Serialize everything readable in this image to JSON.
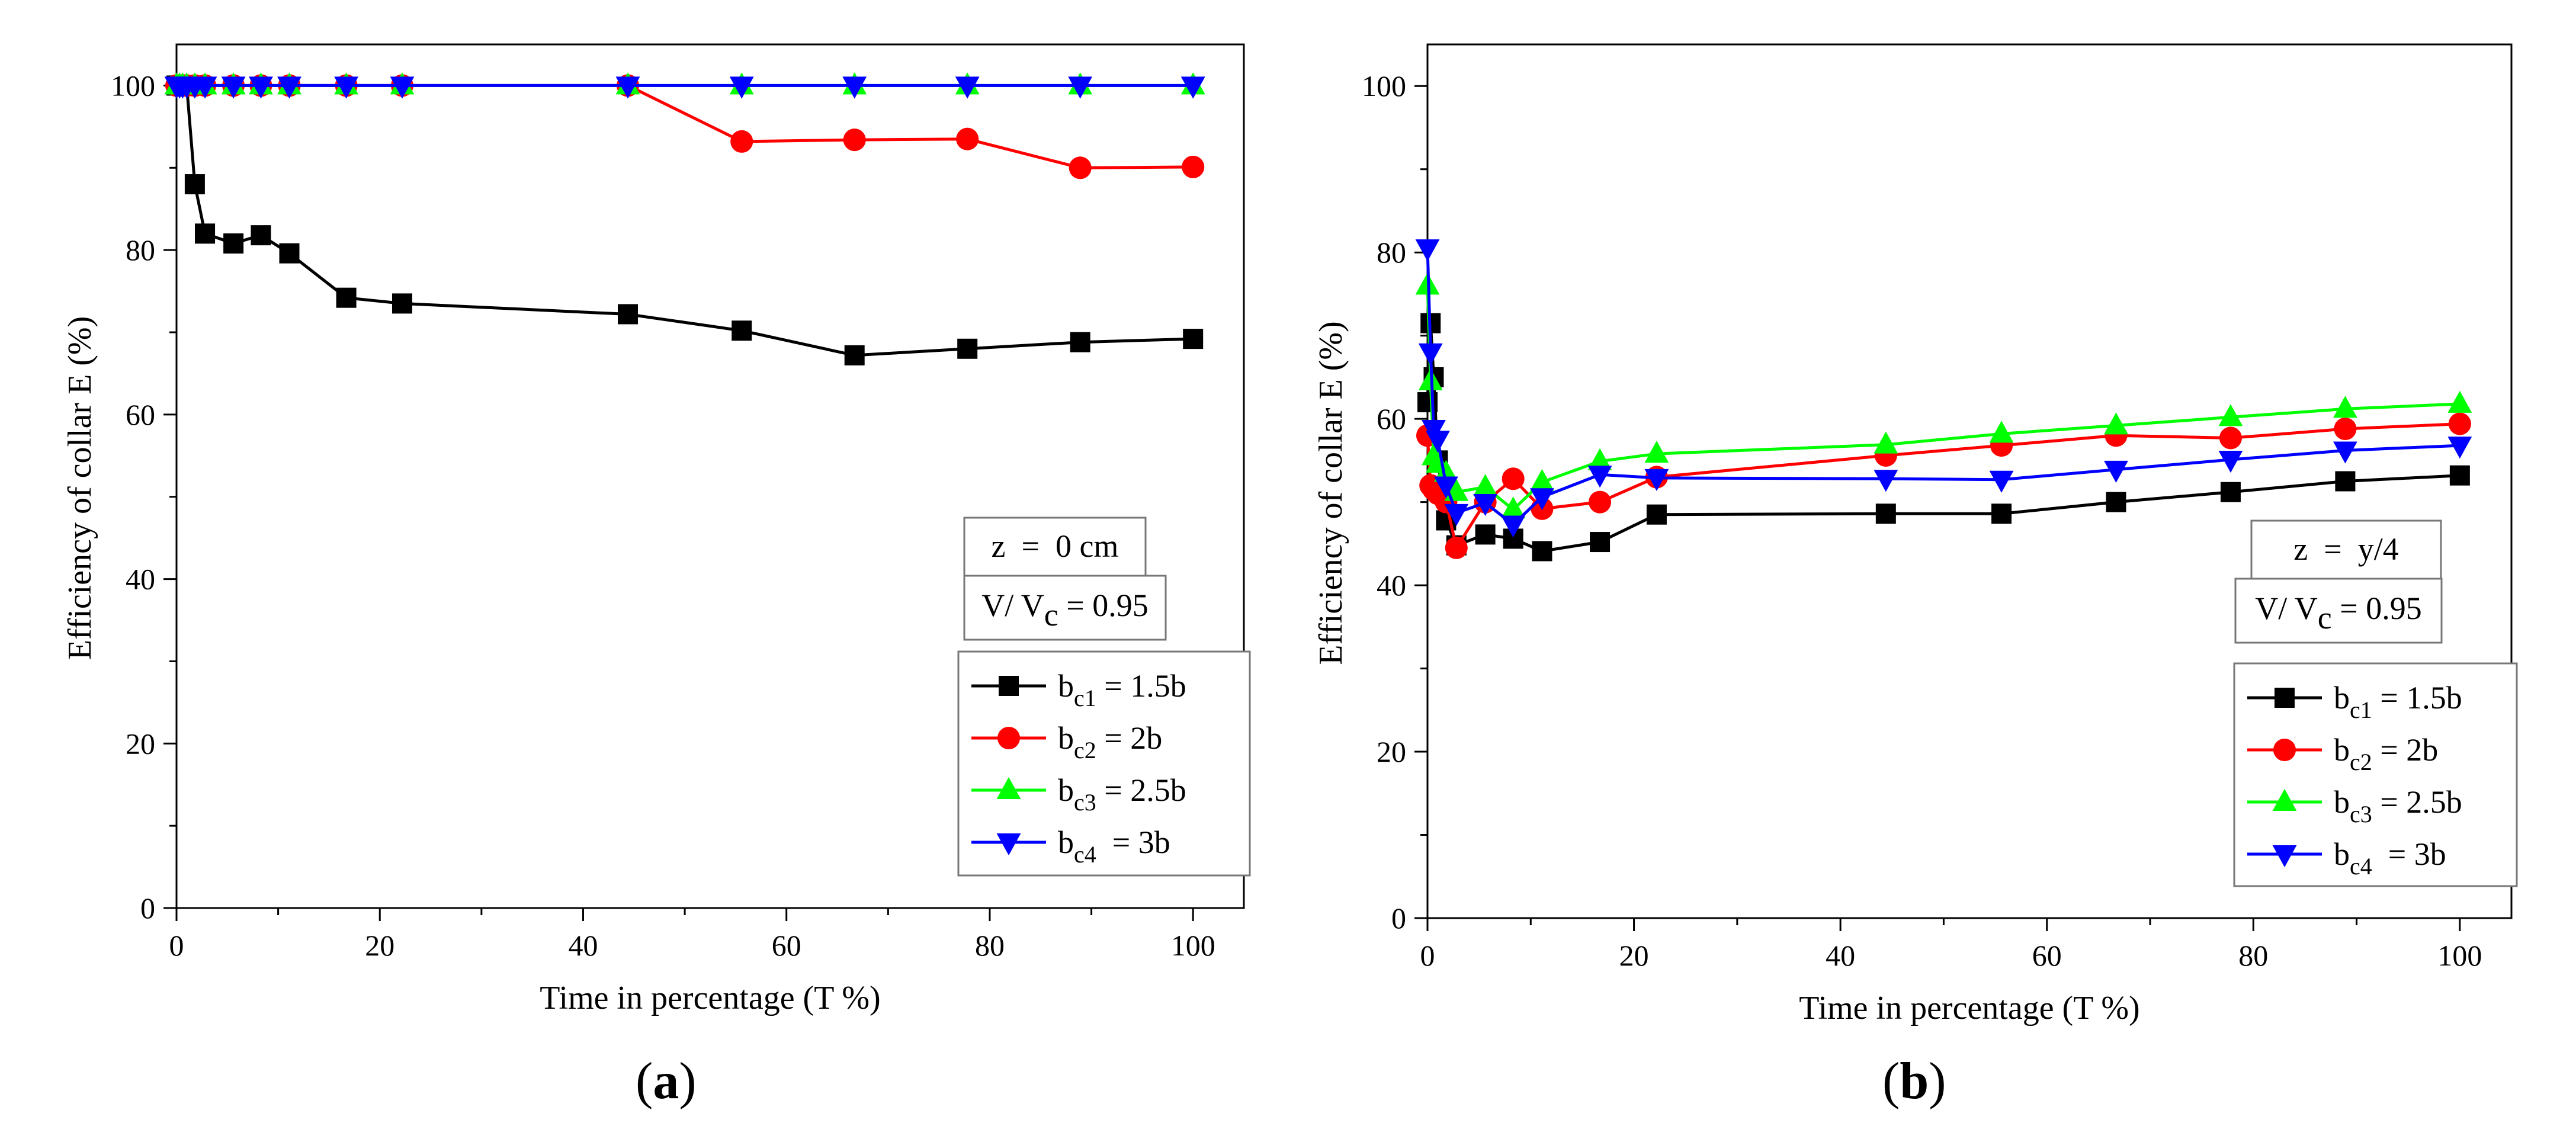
{
  "chart_data": [
    {
      "type": "line",
      "panel_label": "a",
      "xlabel": "Time in percentage (T %)",
      "ylabel": "Efficiency of collar E (%)",
      "xlim": [
        0,
        105
      ],
      "ylim": [
        0,
        105
      ],
      "xticks": [
        0,
        20,
        40,
        60,
        80,
        100
      ],
      "yticks": [
        0,
        20,
        40,
        60,
        80,
        100
      ],
      "annotation_z": "z  =  0 cm",
      "annotation_v": "V/ V",
      "annotation_v_sub": "c",
      "annotation_v_value": " = 0.95",
      "legend_placement": "bottom-right",
      "series": [
        {
          "name": "b",
          "sub": "c1",
          "suffix": " = 1.5b",
          "color": "#000000",
          "marker": "square",
          "x": [
            0,
            0.3,
            0.6,
            1,
            1.8,
            2.8,
            5.6,
            8.3,
            11.1,
            16.7,
            22.2,
            44.4,
            55.6,
            66.7,
            77.8,
            88.9,
            100
          ],
          "y": [
            100,
            100,
            100,
            100,
            88,
            82,
            80.8,
            81.8,
            79.6,
            74.2,
            73.5,
            72.2,
            70.2,
            67.2,
            68,
            68.8,
            69.2
          ]
        },
        {
          "name": "b",
          "sub": "c2",
          "suffix": " = 2b",
          "color": "#ff0000",
          "marker": "circle",
          "x": [
            0,
            0.3,
            0.6,
            1,
            1.8,
            2.8,
            5.6,
            8.3,
            11.1,
            16.7,
            22.2,
            44.4,
            55.6,
            66.7,
            77.8,
            88.9,
            100
          ],
          "y": [
            100,
            100,
            100,
            100,
            100,
            100,
            100,
            100,
            100,
            100,
            100,
            100,
            93.2,
            93.4,
            93.5,
            90,
            90.1
          ]
        },
        {
          "name": "b",
          "sub": "c3",
          "suffix": " = 2.5b",
          "color": "#00ff00",
          "marker": "triangle-up",
          "x": [
            0,
            0.3,
            0.6,
            1,
            1.8,
            2.8,
            5.6,
            8.3,
            11.1,
            16.7,
            22.2,
            44.4,
            55.6,
            66.7,
            77.8,
            88.9,
            100
          ],
          "y": [
            100,
            100,
            100,
            100,
            100,
            100,
            100,
            100,
            100,
            100,
            100,
            100,
            100,
            100,
            100,
            100,
            100
          ]
        },
        {
          "name": "b",
          "sub": "c4",
          "suffix": "  = 3b",
          "color": "#0000ff",
          "marker": "triangle-down",
          "x": [
            0,
            0.3,
            0.6,
            1,
            1.8,
            2.8,
            5.6,
            8.3,
            11.1,
            16.7,
            22.2,
            44.4,
            55.6,
            66.7,
            77.8,
            88.9,
            100
          ],
          "y": [
            100,
            100,
            100,
            100,
            100,
            100,
            100,
            100,
            100,
            100,
            100,
            100,
            100,
            100,
            100,
            100,
            100
          ]
        }
      ]
    },
    {
      "type": "line",
      "panel_label": "b",
      "xlabel": "Time in percentage (T %)",
      "ylabel": "Efficiency of collar E (%)",
      "xlim": [
        0,
        105
      ],
      "ylim": [
        0,
        105
      ],
      "xticks": [
        0,
        20,
        40,
        60,
        80,
        100
      ],
      "yticks": [
        0,
        20,
        40,
        60,
        80,
        100
      ],
      "annotation_z": "z  =  y/4",
      "annotation_v": "V/ V",
      "annotation_v_sub": "c",
      "annotation_v_value": " = 0.95",
      "legend_placement": "bottom-right",
      "series": [
        {
          "name": "b",
          "sub": "c1",
          "suffix": " = 1.5b",
          "color": "#000000",
          "marker": "square",
          "x": [
            0,
            0.3,
            0.6,
            1,
            1.8,
            2.8,
            5.6,
            8.3,
            11.1,
            16.7,
            22.2,
            44.4,
            55.6,
            66.7,
            77.8,
            88.9,
            100
          ],
          "y": [
            62,
            71.5,
            65,
            55,
            47.8,
            44.8,
            46.1,
            45.6,
            44.1,
            45.2,
            48.5,
            48.6,
            48.6,
            50,
            51.2,
            52.5,
            53.2
          ]
        },
        {
          "name": "b",
          "sub": "c2",
          "suffix": " = 2b",
          "color": "#ff0000",
          "marker": "circle",
          "x": [
            0,
            0.3,
            0.6,
            1,
            1.8,
            2.8,
            5.6,
            8.3,
            11.1,
            16.7,
            22.2,
            44.4,
            55.6,
            66.7,
            77.8,
            88.9,
            100
          ],
          "y": [
            58,
            52,
            51.5,
            51,
            50,
            44.5,
            50,
            52.8,
            49.2,
            50,
            53,
            55.6,
            56.8,
            58,
            57.7,
            58.8,
            59.4
          ]
        },
        {
          "name": "b",
          "sub": "c3",
          "suffix": " = 2.5b",
          "color": "#00ff00",
          "marker": "triangle-up",
          "x": [
            0,
            0.3,
            0.6,
            1,
            1.8,
            2.8,
            5.6,
            8.3,
            11.1,
            16.7,
            22.2,
            44.4,
            55.6,
            66.7,
            77.8,
            88.9,
            100
          ],
          "y": [
            76,
            64.5,
            55.5,
            54.6,
            53.5,
            51.2,
            51.8,
            49.1,
            52.4,
            54.9,
            55.8,
            56.9,
            58.2,
            59.2,
            60.2,
            61.2,
            61.8
          ]
        },
        {
          "name": "b",
          "sub": "c4",
          "suffix": "  = 3b",
          "color": "#0000ff",
          "marker": "triangle-down",
          "x": [
            0,
            0.3,
            0.6,
            1,
            1.8,
            2.8,
            5.6,
            8.3,
            11.1,
            16.7,
            22.2,
            44.4,
            55.6,
            66.7,
            77.8,
            88.9,
            100
          ],
          "y": [
            80.5,
            68,
            58.8,
            57.5,
            52,
            48.7,
            49.9,
            47.3,
            50.6,
            53.3,
            52.9,
            52.8,
            52.7,
            53.9,
            55.1,
            56.2,
            56.8
          ]
        }
      ]
    }
  ]
}
